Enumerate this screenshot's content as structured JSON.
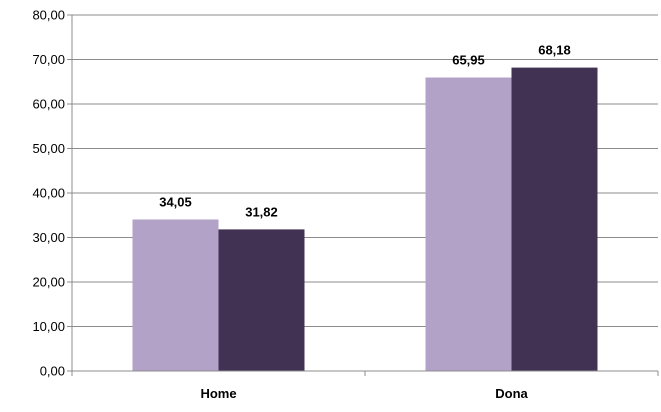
{
  "chart_data": {
    "type": "bar",
    "categories": [
      "Home",
      "Dona"
    ],
    "series": [
      {
        "values": [
          34.05,
          65.95
        ],
        "labels": [
          "34,05",
          "65,95"
        ],
        "color": "#b3a2c8"
      },
      {
        "values": [
          31.82,
          68.18
        ],
        "labels": [
          "31,82",
          "68,18"
        ],
        "color": "#413253"
      }
    ],
    "ylim": [
      0,
      80
    ],
    "yticks": [
      0,
      10,
      20,
      30,
      40,
      50,
      60,
      70,
      80
    ],
    "ytick_labels": [
      "0,00",
      "10,00",
      "20,00",
      "30,00",
      "40,00",
      "50,00",
      "60,00",
      "70,00",
      "80,00"
    ],
    "grid": true,
    "legend": "none",
    "title": "",
    "xlabel": "",
    "ylabel": ""
  }
}
